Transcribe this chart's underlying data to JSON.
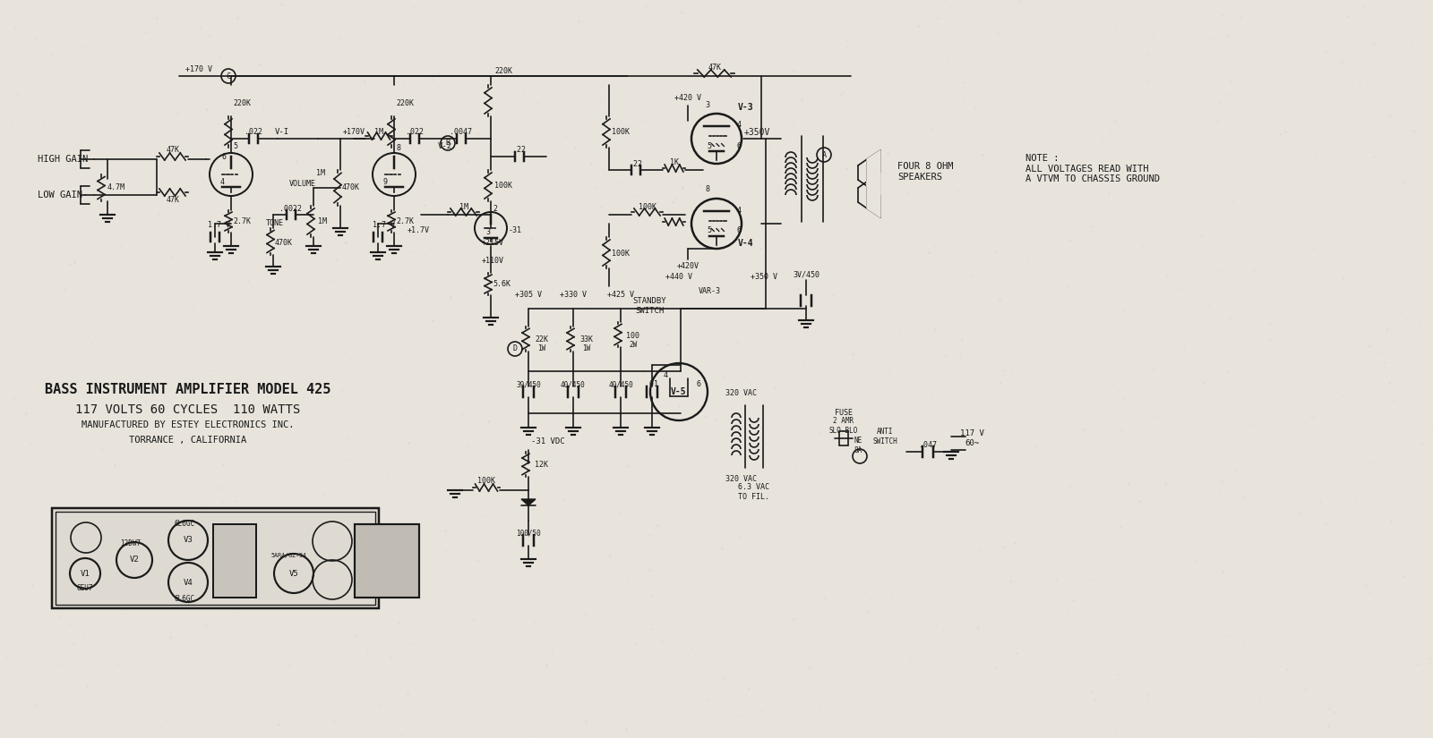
{
  "title": "BASS INSTRUMENT AMPLIFIER MODEL 425",
  "subtitle1": "117 VOLTS 60 CYCLES  110 WATTS",
  "subtitle2": "MANUFACTURED BY ESTEY ELECTRONICS INC.",
  "subtitle3": "TORRANCE , CALIFORNIA",
  "bg_color": "#e8e4dc",
  "line_color": "#1a1a1a",
  "note_text": "NOTE :\nALL VOLTAGES READ WITH\nA VTVM TO CHASSIS GROUND",
  "four_ohm_text": "FOUR 8 OHM\nSPEAKERS"
}
